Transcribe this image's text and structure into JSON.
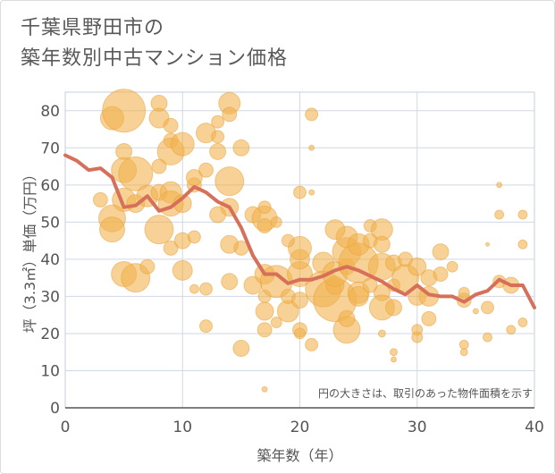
{
  "title_lines": [
    "千葉県野田市の",
    "築年数別中古マンション価格"
  ],
  "chart_data": {
    "type": "scatter",
    "xlabel": "築年数（年）",
    "ylabel": "坪（3.3㎡）単価（万円）",
    "xlim": [
      0,
      40
    ],
    "ylim": [
      0,
      85
    ],
    "xticks": [
      0,
      10,
      20,
      30,
      40
    ],
    "yticks": [
      0,
      10,
      20,
      30,
      40,
      50,
      60,
      70,
      80
    ],
    "grid": true,
    "annotation": "円の大きさは、取引のあった物件面積を示す",
    "colors": {
      "bubble": "#f2b24e",
      "bubble_stroke": "#e6a13a",
      "line": "#d6705a",
      "grid": "#d0d8e4",
      "plot_border": "#c6cfdc"
    },
    "series": [
      {
        "type": "bubble",
        "points": [
          [
            4,
            78,
            13
          ],
          [
            5,
            80,
            24
          ],
          [
            5,
            69,
            9
          ],
          [
            5,
            64,
            14
          ],
          [
            6,
            63,
            19
          ],
          [
            5,
            56,
            13
          ],
          [
            4,
            51,
            15
          ],
          [
            4,
            48,
            14
          ],
          [
            3,
            56,
            8
          ],
          [
            6,
            55,
            10
          ],
          [
            7,
            57,
            12
          ],
          [
            8,
            82,
            9
          ],
          [
            8,
            78,
            11
          ],
          [
            9,
            76,
            8
          ],
          [
            9,
            72,
            8
          ],
          [
            9,
            69,
            15
          ],
          [
            10,
            71,
            13
          ],
          [
            8,
            65,
            8
          ],
          [
            8,
            58,
            9
          ],
          [
            9,
            58,
            12
          ],
          [
            9,
            55,
            14
          ],
          [
            8,
            48,
            16
          ],
          [
            10,
            55,
            10
          ],
          [
            11,
            60,
            8
          ],
          [
            11,
            62,
            9
          ],
          [
            12,
            74,
            11
          ],
          [
            12,
            64,
            8
          ],
          [
            13,
            77,
            7
          ],
          [
            13,
            73,
            7
          ],
          [
            14,
            82,
            12
          ],
          [
            14,
            79,
            8
          ],
          [
            13,
            69,
            9
          ],
          [
            14,
            61,
            16
          ],
          [
            14,
            54,
            10
          ],
          [
            13,
            52,
            9
          ],
          [
            15,
            70,
            9
          ],
          [
            5,
            36,
            14
          ],
          [
            6,
            35,
            16
          ],
          [
            7,
            38,
            8
          ],
          [
            9,
            43,
            8
          ],
          [
            10,
            37,
            11
          ],
          [
            10,
            45,
            9
          ],
          [
            11,
            46,
            7
          ],
          [
            11,
            32,
            5
          ],
          [
            12,
            32,
            7
          ],
          [
            12,
            22,
            7
          ],
          [
            14,
            34,
            9
          ],
          [
            15,
            16,
            9
          ],
          [
            14,
            44,
            10
          ],
          [
            15,
            43,
            8
          ],
          [
            16,
            52,
            9
          ],
          [
            17,
            51,
            14
          ],
          [
            17,
            49,
            8
          ],
          [
            17,
            54,
            7
          ],
          [
            18,
            50,
            6
          ],
          [
            16,
            33,
            10
          ],
          [
            17,
            36,
            11
          ],
          [
            17,
            30,
            7
          ],
          [
            18,
            34,
            18
          ],
          [
            17,
            26,
            10
          ],
          [
            17,
            21,
            8
          ],
          [
            18,
            23,
            6
          ],
          [
            19,
            26,
            12
          ],
          [
            19,
            30,
            8
          ],
          [
            20,
            36,
            14
          ],
          [
            20,
            29,
            9
          ],
          [
            20,
            21,
            8
          ],
          [
            20,
            20,
            6
          ],
          [
            21,
            17,
            7
          ],
          [
            20,
            40,
            11
          ],
          [
            20,
            43,
            13
          ],
          [
            19,
            45,
            7
          ],
          [
            20,
            58,
            7
          ],
          [
            21,
            79,
            7
          ],
          [
            21,
            70,
            3
          ],
          [
            21,
            58,
            3
          ],
          [
            22,
            39,
            12
          ],
          [
            22,
            32,
            20
          ],
          [
            23,
            29,
            24
          ],
          [
            23,
            33,
            10
          ],
          [
            23,
            36,
            14
          ],
          [
            24,
            38,
            9
          ],
          [
            24,
            42,
            16
          ],
          [
            24,
            46,
            12
          ],
          [
            23,
            48,
            11
          ],
          [
            25,
            39,
            22
          ],
          [
            25,
            31,
            12
          ],
          [
            25,
            44,
            12
          ],
          [
            26,
            45,
            8
          ],
          [
            26,
            49,
            7
          ],
          [
            24,
            21,
            15
          ],
          [
            24,
            24,
            9
          ],
          [
            25,
            30,
            11
          ],
          [
            26,
            33,
            8
          ],
          [
            27,
            48,
            12
          ],
          [
            27,
            44,
            9
          ],
          [
            27,
            38,
            15
          ],
          [
            27,
            31,
            9
          ],
          [
            27,
            27,
            14
          ],
          [
            28,
            33,
            7
          ],
          [
            28,
            27,
            9
          ],
          [
            28,
            39,
            9
          ],
          [
            28,
            15,
            4
          ],
          [
            28,
            13,
            3
          ],
          [
            27,
            20,
            4
          ],
          [
            29,
            35,
            15
          ],
          [
            29,
            40,
            8
          ],
          [
            30,
            38,
            10
          ],
          [
            30,
            30,
            10
          ],
          [
            30,
            21,
            6
          ],
          [
            30,
            19,
            6
          ],
          [
            31,
            35,
            9
          ],
          [
            31,
            30,
            11
          ],
          [
            31,
            24,
            8
          ],
          [
            32,
            42,
            9
          ],
          [
            32,
            36,
            8
          ],
          [
            33,
            38,
            6
          ],
          [
            34,
            29,
            8
          ],
          [
            34,
            31,
            6
          ],
          [
            34,
            17,
            5
          ],
          [
            34,
            15,
            4
          ],
          [
            35,
            26,
            3
          ],
          [
            36,
            27,
            7
          ],
          [
            36,
            19,
            5
          ],
          [
            37,
            34,
            7
          ],
          [
            37,
            52,
            5
          ],
          [
            37,
            60,
            3
          ],
          [
            38,
            33,
            9
          ],
          [
            38,
            21,
            5
          ],
          [
            39,
            52,
            5
          ],
          [
            39,
            44,
            5
          ],
          [
            39,
            23,
            5
          ],
          [
            17,
            5,
            3
          ],
          [
            36,
            44,
            2
          ]
        ]
      },
      {
        "type": "line",
        "x": [
          0,
          1,
          2,
          3,
          4,
          5,
          6,
          7,
          8,
          9,
          10,
          11,
          12,
          13,
          14,
          15,
          16,
          17,
          18,
          19,
          20,
          21,
          22,
          23,
          24,
          25,
          26,
          27,
          28,
          29,
          30,
          31,
          32,
          33,
          34,
          35,
          36,
          37,
          38,
          39,
          40
        ],
        "y": [
          68,
          66.5,
          64,
          64.5,
          62,
          54,
          54.5,
          57,
          53,
          54,
          56.5,
          59.5,
          58,
          55.5,
          54,
          48.5,
          41,
          36,
          36,
          33.5,
          34.5,
          34.5,
          35.5,
          37,
          38,
          37,
          35.5,
          34,
          32,
          30.5,
          33,
          30.5,
          30,
          30,
          28.5,
          30.5,
          31.5,
          34.5,
          33,
          33,
          27
        ]
      }
    ]
  }
}
